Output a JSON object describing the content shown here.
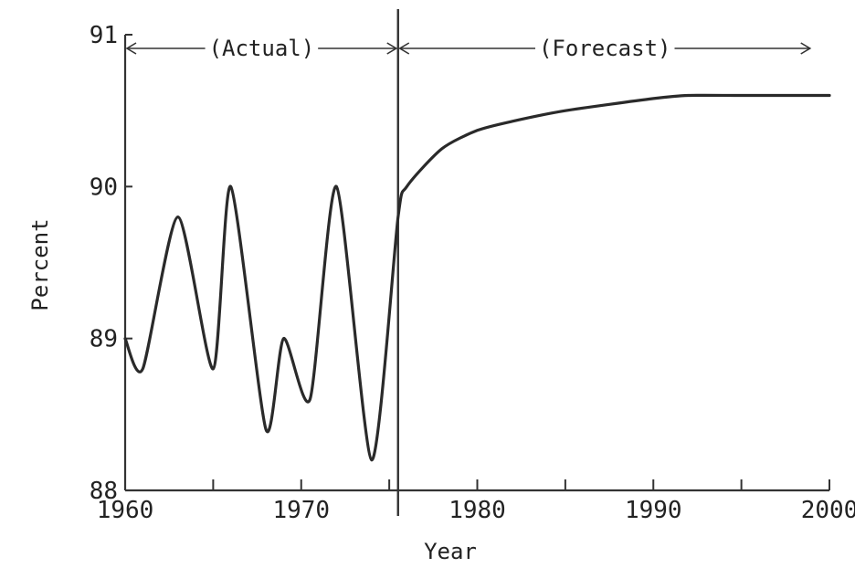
{
  "chart_data": {
    "type": "line",
    "title": "",
    "xlabel": "Year",
    "ylabel": "Percent",
    "xlim": [
      1960,
      2000
    ],
    "ylim": [
      88,
      91
    ],
    "x_ticks": [
      1960,
      1970,
      1980,
      1990,
      2000
    ],
    "x_minor_ticks": [
      1965,
      1975,
      1985,
      1995
    ],
    "y_ticks": [
      88,
      89,
      90,
      91
    ],
    "grid": false,
    "divider_x": 1975.5,
    "regions": [
      {
        "label": "(Actual)",
        "from": 1960,
        "to": 1975.5
      },
      {
        "label": "(Forecast)",
        "from": 1975.5,
        "to": 1999
      }
    ],
    "series": [
      {
        "values_x": [
          1960,
          1961,
          1963,
          1965,
          1966,
          1968,
          1969,
          1970.5,
          1972,
          1974,
          1975.5,
          1976,
          1978,
          1980,
          1982,
          1985,
          1990,
          1992,
          1995,
          2000
        ],
        "values_y": [
          89.0,
          88.8,
          89.8,
          88.8,
          90.0,
          88.4,
          89.0,
          88.6,
          90.0,
          88.2,
          89.8,
          90.0,
          90.25,
          90.37,
          90.43,
          90.5,
          90.58,
          90.6,
          90.6,
          90.6
        ]
      }
    ],
    "colors": {
      "line": "#2a2a2a",
      "axis": "#333333",
      "text": "#222222"
    }
  }
}
